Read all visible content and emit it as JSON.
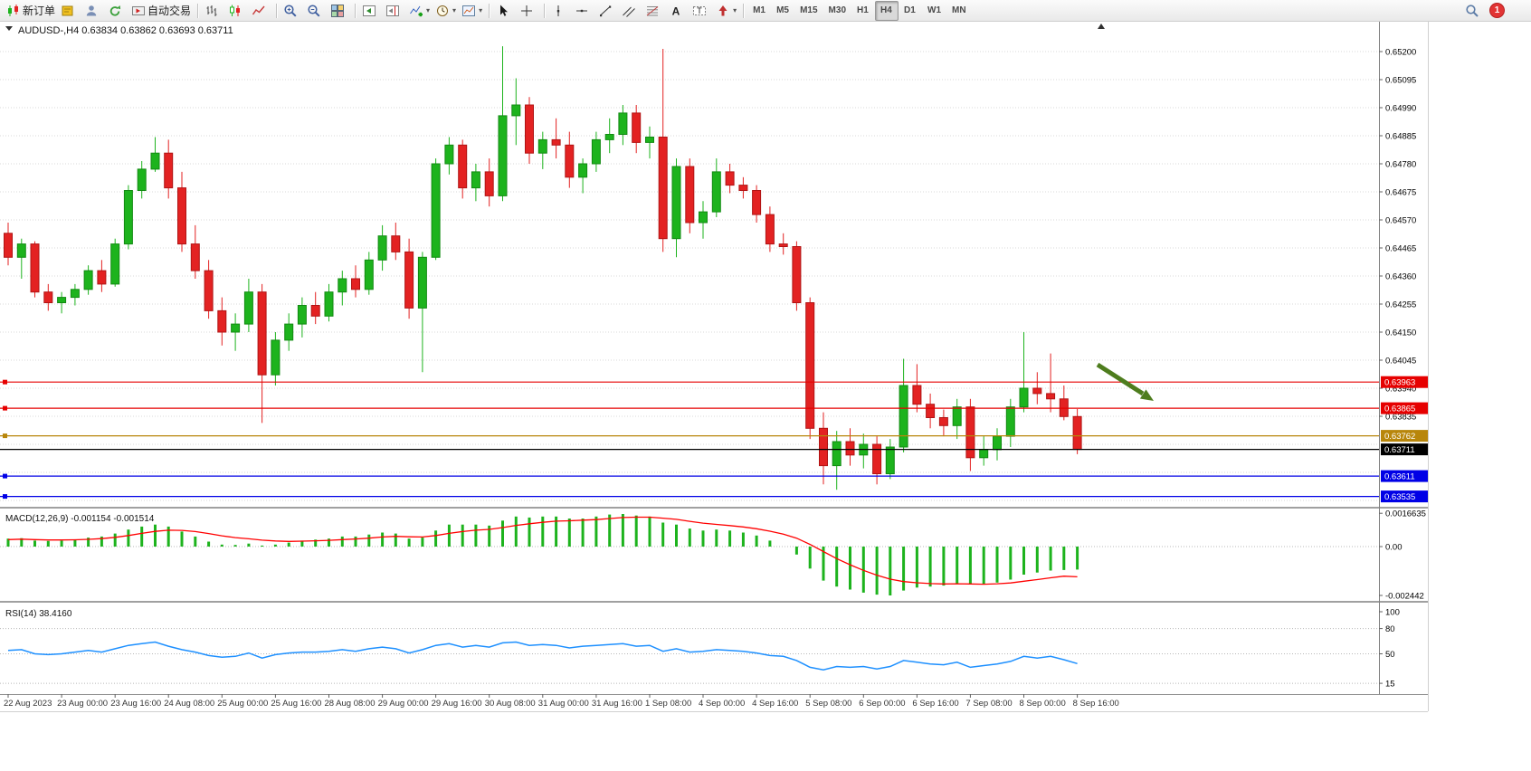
{
  "app": {
    "notification_count": "1"
  },
  "toolbar": {
    "groups": [
      {
        "items": [
          {
            "name": "new-order-button",
            "icon": "new-order-icon",
            "label": "新订单"
          },
          {
            "name": "metaeditor-button",
            "icon": "metaeditor-icon"
          },
          {
            "name": "market-watch-button",
            "icon": "person-icon"
          },
          {
            "name": "refresh-button",
            "icon": "refresh-icon"
          },
          {
            "name": "autotrading-button",
            "icon": "autotrading-icon",
            "label": "自动交易"
          }
        ]
      },
      {
        "items": [
          {
            "name": "bar-chart-button",
            "icon": "bar-chart-icon"
          },
          {
            "name": "candlestick-chart-button",
            "icon": "candlestick-icon"
          },
          {
            "name": "line-chart-button",
            "icon": "line-chart-icon"
          }
        ]
      },
      {
        "items": [
          {
            "name": "zoom-in-button",
            "icon": "zoom-in-icon"
          },
          {
            "name": "zoom-out-button",
            "icon": "zoom-out-icon"
          },
          {
            "name": "tile-windows-button",
            "icon": "tile-windows-icon"
          }
        ]
      },
      {
        "items": [
          {
            "name": "auto-scroll-button",
            "icon": "auto-scroll-icon"
          },
          {
            "name": "chart-shift-button",
            "icon": "chart-shift-icon"
          },
          {
            "name": "indicators-button",
            "icon": "indicators-icon",
            "dropdown": true
          },
          {
            "name": "periods-button",
            "icon": "clock-icon",
            "dropdown": true
          },
          {
            "name": "templates-button",
            "icon": "template-icon",
            "dropdown": true
          }
        ]
      },
      {
        "items": [
          {
            "name": "cursor-button",
            "icon": "cursor-icon"
          },
          {
            "name": "crosshair-button",
            "icon": "crosshair-icon"
          }
        ]
      },
      {
        "items": [
          {
            "name": "vertical-line-button",
            "icon": "vertical-line-icon"
          },
          {
            "name": "horizontal-line-button",
            "icon": "horizontal-line-icon"
          },
          {
            "name": "trendline-button",
            "icon": "trendline-icon"
          },
          {
            "name": "channel-button",
            "icon": "channel-icon"
          },
          {
            "name": "fibonacci-button",
            "icon": "fibonacci-icon"
          },
          {
            "name": "text-button",
            "icon": "text-a-icon"
          },
          {
            "name": "text-label-button",
            "icon": "text-label-icon"
          },
          {
            "name": "arrows-button",
            "icon": "arrow-shape-icon",
            "dropdown": true
          }
        ]
      },
      {
        "items": [
          {
            "name": "timeframe-m1-button",
            "text": "M1"
          },
          {
            "name": "timeframe-m5-button",
            "text": "M5"
          },
          {
            "name": "timeframe-m15-button",
            "text": "M15"
          },
          {
            "name": "timeframe-m30-button",
            "text": "M30"
          },
          {
            "name": "timeframe-h1-button",
            "text": "H1"
          },
          {
            "name": "timeframe-h4-button",
            "text": "H4",
            "active": true
          },
          {
            "name": "timeframe-d1-button",
            "text": "D1"
          },
          {
            "name": "timeframe-w1-button",
            "text": "W1"
          },
          {
            "name": "timeframe-mn-button",
            "text": "MN"
          }
        ]
      }
    ]
  },
  "chart": {
    "title_symbol": "AUDUSD-,H4",
    "title_ohlc": "0.63834 0.63862 0.63693 0.63711",
    "price_axis_labels": [
      "0.65200",
      "0.65095",
      "0.64990",
      "0.64885",
      "0.64780",
      "0.64675",
      "0.64570",
      "0.64465",
      "0.64360",
      "0.64255",
      "0.64150",
      "0.64045",
      "0.63940",
      "0.63835"
    ],
    "hlines": [
      {
        "label": "0.63963",
        "color": "#e60000"
      },
      {
        "label": "0.63865",
        "color": "#e60000"
      },
      {
        "label": "0.63762",
        "color": "#b8860b"
      },
      {
        "label": "0.63711",
        "color": "#000000"
      },
      {
        "label": "0.63611",
        "color": "#0000e6"
      },
      {
        "label": "0.63535",
        "color": "#0000e6"
      }
    ],
    "time_axis_labels": [
      "22 Aug 2023",
      "23 Aug 00:00",
      "23 Aug 16:00",
      "24 Aug 08:00",
      "25 Aug 00:00",
      "25 Aug 16:00",
      "28 Aug 08:00",
      "29 Aug 00:00",
      "29 Aug 16:00",
      "30 Aug 08:00",
      "31 Aug 00:00",
      "31 Aug 16:00",
      "1 Sep 08:00",
      "4 Sep 00:00",
      "4 Sep 16:00",
      "5 Sep 08:00",
      "6 Sep 00:00",
      "6 Sep 16:00",
      "7 Sep 08:00",
      "8 Sep 00:00",
      "8 Sep 16:00"
    ]
  },
  "indicators": {
    "macd": {
      "label": "MACD(12,26,9) -0.001154 -0.001514",
      "axis_labels": [
        "0.0016635",
        "0.00",
        "-0.002442"
      ]
    },
    "rsi": {
      "label": "RSI(14) 38.4160",
      "axis_labels": [
        "100",
        "80",
        "50",
        "15"
      ],
      "levels": [
        80,
        50,
        15
      ]
    }
  },
  "annotation": {
    "arrow_color": "#4e7d1e"
  },
  "chart_data": {
    "type": "candlestick",
    "symbol": "AUDUSD-",
    "timeframe": "H4",
    "colors": {
      "up": "#1db31d",
      "down": "#e32222",
      "up_border": "#128a12",
      "down_border": "#b01414",
      "macd_hist": "#1db31d",
      "macd_signal": "#ff0000",
      "rsi_line": "#1e90ff"
    },
    "candles": [
      [
        0.6452,
        0.6456,
        0.644,
        0.6443
      ],
      [
        0.6443,
        0.645,
        0.6435,
        0.6448
      ],
      [
        0.6448,
        0.6449,
        0.6428,
        0.643
      ],
      [
        0.643,
        0.6433,
        0.6423,
        0.6426
      ],
      [
        0.6426,
        0.643,
        0.6422,
        0.6428
      ],
      [
        0.6428,
        0.6433,
        0.6425,
        0.6431
      ],
      [
        0.6431,
        0.644,
        0.6429,
        0.6438
      ],
      [
        0.6438,
        0.6442,
        0.643,
        0.6433
      ],
      [
        0.6433,
        0.645,
        0.6432,
        0.6448
      ],
      [
        0.6448,
        0.647,
        0.6446,
        0.6468
      ],
      [
        0.6468,
        0.6479,
        0.6465,
        0.6476
      ],
      [
        0.6476,
        0.6488,
        0.6475,
        0.6482
      ],
      [
        0.6482,
        0.6487,
        0.6465,
        0.6469
      ],
      [
        0.6469,
        0.6475,
        0.6445,
        0.6448
      ],
      [
        0.6448,
        0.6455,
        0.6435,
        0.6438
      ],
      [
        0.6438,
        0.6442,
        0.642,
        0.6423
      ],
      [
        0.6423,
        0.6428,
        0.641,
        0.6415
      ],
      [
        0.6415,
        0.6422,
        0.6408,
        0.6418
      ],
      [
        0.6418,
        0.6435,
        0.6415,
        0.643
      ],
      [
        0.643,
        0.6433,
        0.6381,
        0.6399
      ],
      [
        0.6399,
        0.6415,
        0.6395,
        0.6412
      ],
      [
        0.6412,
        0.6422,
        0.6408,
        0.6418
      ],
      [
        0.6418,
        0.6428,
        0.6413,
        0.6425
      ],
      [
        0.6425,
        0.643,
        0.6418,
        0.6421
      ],
      [
        0.6421,
        0.6433,
        0.6419,
        0.643
      ],
      [
        0.643,
        0.6438,
        0.6425,
        0.6435
      ],
      [
        0.6435,
        0.644,
        0.6428,
        0.6431
      ],
      [
        0.6431,
        0.6445,
        0.6429,
        0.6442
      ],
      [
        0.6442,
        0.6455,
        0.6438,
        0.6451
      ],
      [
        0.6451,
        0.6456,
        0.6442,
        0.6445
      ],
      [
        0.6445,
        0.645,
        0.642,
        0.6424
      ],
      [
        0.6424,
        0.6445,
        0.64,
        0.6443
      ],
      [
        0.6443,
        0.648,
        0.6442,
        0.6478
      ],
      [
        0.6478,
        0.6488,
        0.6474,
        0.6485
      ],
      [
        0.6485,
        0.6487,
        0.6465,
        0.6469
      ],
      [
        0.6469,
        0.6478,
        0.6464,
        0.6475
      ],
      [
        0.6475,
        0.648,
        0.6462,
        0.6466
      ],
      [
        0.6466,
        0.6522,
        0.6464,
        0.6496
      ],
      [
        0.6496,
        0.651,
        0.6485,
        0.65
      ],
      [
        0.65,
        0.6503,
        0.6478,
        0.6482
      ],
      [
        0.6482,
        0.649,
        0.6476,
        0.6487
      ],
      [
        0.6487,
        0.6495,
        0.648,
        0.6485
      ],
      [
        0.6485,
        0.649,
        0.6469,
        0.6473
      ],
      [
        0.6473,
        0.648,
        0.6467,
        0.6478
      ],
      [
        0.6478,
        0.649,
        0.6475,
        0.6487
      ],
      [
        0.6487,
        0.6495,
        0.6482,
        0.6489
      ],
      [
        0.6489,
        0.65,
        0.6485,
        0.6497
      ],
      [
        0.6497,
        0.65,
        0.6482,
        0.6486
      ],
      [
        0.6486,
        0.6492,
        0.648,
        0.6488
      ],
      [
        0.6488,
        0.6521,
        0.6445,
        0.645
      ],
      [
        0.645,
        0.648,
        0.6443,
        0.6477
      ],
      [
        0.6477,
        0.648,
        0.6452,
        0.6456
      ],
      [
        0.6456,
        0.6464,
        0.645,
        0.646
      ],
      [
        0.646,
        0.648,
        0.6458,
        0.6475
      ],
      [
        0.6475,
        0.6478,
        0.6467,
        0.647
      ],
      [
        0.647,
        0.6473,
        0.6465,
        0.6468
      ],
      [
        0.6468,
        0.647,
        0.6456,
        0.6459
      ],
      [
        0.6459,
        0.6462,
        0.6445,
        0.6448
      ],
      [
        0.6448,
        0.6452,
        0.6444,
        0.6447
      ],
      [
        0.6447,
        0.6449,
        0.6423,
        0.6426
      ],
      [
        0.6426,
        0.6428,
        0.6375,
        0.6379
      ],
      [
        0.6379,
        0.6385,
        0.6358,
        0.6365
      ],
      [
        0.6365,
        0.6378,
        0.6356,
        0.6374
      ],
      [
        0.6374,
        0.6379,
        0.6365,
        0.6369
      ],
      [
        0.6369,
        0.6377,
        0.6364,
        0.6373
      ],
      [
        0.6373,
        0.6376,
        0.6358,
        0.6362
      ],
      [
        0.6362,
        0.6375,
        0.636,
        0.6372
      ],
      [
        0.6372,
        0.6405,
        0.637,
        0.6395
      ],
      [
        0.6395,
        0.6403,
        0.6385,
        0.6388
      ],
      [
        0.6388,
        0.6392,
        0.6379,
        0.6383
      ],
      [
        0.6383,
        0.6386,
        0.6376,
        0.638
      ],
      [
        0.638,
        0.639,
        0.6375,
        0.6387
      ],
      [
        0.6387,
        0.639,
        0.6363,
        0.6368
      ],
      [
        0.6368,
        0.6376,
        0.6365,
        0.6371
      ],
      [
        0.6371,
        0.6379,
        0.6367,
        0.6376
      ],
      [
        0.6376,
        0.639,
        0.6372,
        0.6387
      ],
      [
        0.6387,
        0.6415,
        0.6385,
        0.6394
      ],
      [
        0.6394,
        0.64,
        0.6388,
        0.6392
      ],
      [
        0.6392,
        0.6407,
        0.6385,
        0.639
      ],
      [
        0.639,
        0.6395,
        0.6382,
        0.63834
      ],
      [
        0.63834,
        0.63862,
        0.63693,
        0.63711
      ]
    ],
    "macd_histogram": [
      0.0004,
      0.00042,
      0.0003,
      0.00028,
      0.0003,
      0.00035,
      0.00045,
      0.0005,
      0.00065,
      0.00085,
      0.001,
      0.0011,
      0.001,
      0.00075,
      0.0005,
      0.00025,
      0.0001,
      8e-05,
      0.00015,
      5e-05,
      0.0001,
      0.0002,
      0.0003,
      0.00035,
      0.0004,
      0.0005,
      0.0005,
      0.0006,
      0.0007,
      0.00065,
      0.0004,
      0.00045,
      0.0008,
      0.0011,
      0.0011,
      0.0011,
      0.00105,
      0.0013,
      0.0015,
      0.00145,
      0.0015,
      0.0015,
      0.0014,
      0.0014,
      0.0015,
      0.0016,
      0.00163,
      0.00155,
      0.0015,
      0.0012,
      0.0011,
      0.0009,
      0.0008,
      0.00085,
      0.0008,
      0.0007,
      0.00055,
      0.0003,
      0.0,
      -0.0004,
      -0.0011,
      -0.0017,
      -0.002,
      -0.00215,
      -0.0023,
      -0.0024,
      -0.00244,
      -0.0022,
      -0.00205,
      -0.002,
      -0.00195,
      -0.00185,
      -0.0019,
      -0.0019,
      -0.0018,
      -0.00165,
      -0.0014,
      -0.0013,
      -0.0012,
      -0.00117,
      -0.00115
    ],
    "macd_signal": [
      0.00035,
      0.00037,
      0.00035,
      0.00033,
      0.00033,
      0.00034,
      0.00036,
      0.0004,
      0.00046,
      0.00055,
      0.00066,
      0.00076,
      0.00082,
      0.00081,
      0.00075,
      0.00065,
      0.00054,
      0.00045,
      0.00039,
      0.00032,
      0.00028,
      0.00026,
      0.00027,
      0.00029,
      0.00031,
      0.00035,
      0.00038,
      0.00042,
      0.00048,
      0.00051,
      0.00049,
      0.00048,
      0.00055,
      0.00066,
      0.00075,
      0.00082,
      0.00086,
      0.00095,
      0.00106,
      0.00114,
      0.00121,
      0.00127,
      0.00129,
      0.00132,
      0.00135,
      0.0014,
      0.00145,
      0.00147,
      0.00147,
      0.00142,
      0.00136,
      0.00126,
      0.00117,
      0.00111,
      0.00105,
      0.00098,
      0.00089,
      0.00077,
      0.00062,
      0.00042,
      0.00011,
      -0.00025,
      -0.0006,
      -0.00091,
      -0.00119,
      -0.00143,
      -0.00163,
      -0.00175,
      -0.00181,
      -0.00185,
      -0.00187,
      -0.00186,
      -0.00187,
      -0.00188,
      -0.00186,
      -0.00182,
      -0.00173,
      -0.00165,
      -0.00156,
      -0.00148,
      -0.00151
    ],
    "rsi_values": [
      54,
      55,
      50,
      49,
      50,
      52,
      54,
      52,
      56,
      60,
      62,
      64,
      59,
      55,
      52,
      48,
      46,
      47,
      51,
      45,
      49,
      51,
      52,
      52,
      53,
      55,
      53,
      56,
      58,
      56,
      51,
      55,
      60,
      62,
      58,
      60,
      58,
      63,
      64,
      60,
      61,
      60,
      57,
      59,
      60,
      61,
      62,
      59,
      60,
      53,
      56,
      52,
      53,
      55,
      54,
      53,
      51,
      48,
      47,
      42,
      34,
      31,
      35,
      34,
      35,
      32,
      35,
      42,
      40,
      38,
      37,
      40,
      34,
      36,
      38,
      41,
      47,
      45,
      47,
      43,
      38.4
    ]
  }
}
